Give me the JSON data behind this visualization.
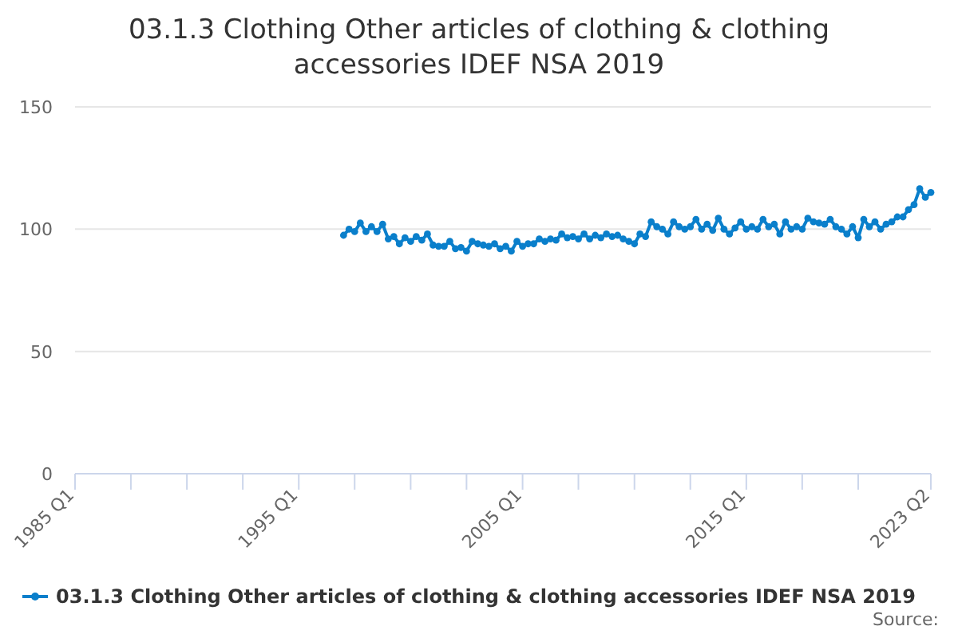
{
  "chart_data": {
    "type": "line",
    "title": "03.1.3 Clothing Other articles of clothing & clothing accessories IDEF NSA 2019",
    "x": [
      "1997-01",
      "1997-04",
      "1997-07",
      "1997-10",
      "1998-01",
      "1998-04",
      "1998-07",
      "1998-10",
      "1999-01",
      "1999-04",
      "1999-07",
      "1999-10",
      "2000-01",
      "2000-04",
      "2000-07",
      "2000-10",
      "2001-01",
      "2001-04",
      "2001-07",
      "2001-10",
      "2002-01",
      "2002-04",
      "2002-07",
      "2002-10",
      "2003-01",
      "2003-04",
      "2003-07",
      "2003-10",
      "2004-01",
      "2004-04",
      "2004-07",
      "2004-10",
      "2005-01",
      "2005-04",
      "2005-07",
      "2005-10",
      "2006-01",
      "2006-04",
      "2006-07",
      "2006-10",
      "2007-01",
      "2007-04",
      "2007-07",
      "2007-10",
      "2008-01",
      "2008-04",
      "2008-07",
      "2008-10",
      "2009-01",
      "2009-04",
      "2009-07",
      "2009-10",
      "2010-01",
      "2010-04",
      "2010-07",
      "2010-10",
      "2011-01",
      "2011-04",
      "2011-07",
      "2011-10",
      "2012-01",
      "2012-04",
      "2012-07",
      "2012-10",
      "2013-01",
      "2013-04",
      "2013-07",
      "2013-10",
      "2014-01",
      "2014-04",
      "2014-07",
      "2014-10",
      "2015-01",
      "2015-04",
      "2015-07",
      "2015-10",
      "2016-01",
      "2016-04",
      "2016-07",
      "2016-10",
      "2017-01",
      "2017-04",
      "2017-07",
      "2017-10",
      "2018-01",
      "2018-04",
      "2018-07",
      "2018-10",
      "2019-01",
      "2019-04",
      "2019-07",
      "2019-10",
      "2020-01",
      "2020-04",
      "2020-07",
      "2020-10",
      "2021-01",
      "2021-04",
      "2021-07",
      "2021-10",
      "2022-01",
      "2022-04",
      "2022-07",
      "2022-10",
      "2023-01",
      "2023-04"
    ],
    "series": [
      {
        "name": "03.1.3 Clothing Other articles of clothing & clothing accessories IDEF NSA 2019",
        "color": "#0a7fcb",
        "values": [
          97.5,
          100,
          99,
          102.5,
          99,
          101,
          99,
          102,
          96,
          97,
          94,
          96.5,
          95,
          97,
          95.5,
          98,
          93.5,
          93,
          93,
          95,
          92,
          92.5,
          91,
          95,
          94,
          93.5,
          93,
          94,
          92,
          93,
          91,
          95,
          93,
          94,
          94,
          96,
          95,
          96,
          95.5,
          98,
          96.5,
          97,
          96,
          98,
          96,
          97.5,
          96.5,
          98,
          97,
          97.5,
          96,
          95,
          94,
          98,
          97,
          103,
          101,
          100,
          98,
          103,
          101,
          100,
          101,
          104,
          100,
          102,
          99.5,
          104.5,
          100,
          98,
          100.5,
          103,
          100,
          101,
          100,
          104,
          101,
          102,
          98,
          103,
          100,
          101,
          100,
          104.5,
          103,
          102.5,
          102,
          104,
          101,
          100,
          98,
          101,
          96.5,
          104,
          101,
          103,
          100,
          102,
          103,
          105,
          105,
          108,
          110,
          116.5,
          113,
          115
        ]
      }
    ],
    "xlim": [
      "1985-01",
      "2023-04"
    ],
    "xticks": [
      {
        "value": "1985-01",
        "label": "1985 Q1"
      },
      {
        "value": "1987-07",
        "label": null
      },
      {
        "value": "1990-01",
        "label": null
      },
      {
        "value": "1992-07",
        "label": null
      },
      {
        "value": "1995-01",
        "label": "1995 Q1"
      },
      {
        "value": "1997-07",
        "label": null
      },
      {
        "value": "2000-01",
        "label": null
      },
      {
        "value": "2002-07",
        "label": null
      },
      {
        "value": "2005-01",
        "label": "2005 Q1"
      },
      {
        "value": "2007-07",
        "label": null
      },
      {
        "value": "2010-01",
        "label": null
      },
      {
        "value": "2012-07",
        "label": null
      },
      {
        "value": "2015-01",
        "label": "2015 Q1"
      },
      {
        "value": "2017-07",
        "label": null
      },
      {
        "value": "2020-01",
        "label": null
      },
      {
        "value": "2023-04",
        "label": "2023 Q2"
      }
    ],
    "ylim": [
      0,
      150
    ],
    "yticks": [
      0,
      50,
      100,
      150
    ],
    "grid": "y",
    "marker": "circle",
    "line_style": "solid",
    "legend": "bottom",
    "annotations": [
      "Source:"
    ]
  }
}
